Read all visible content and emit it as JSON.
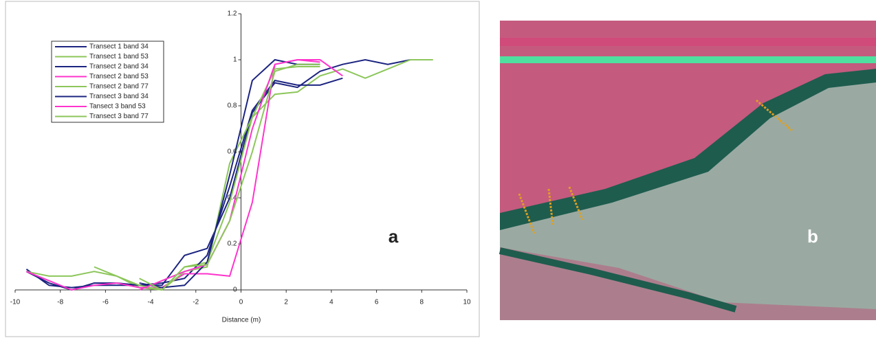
{
  "chart_data": {
    "type": "line",
    "x_label": "Distance (m)",
    "annotation": "a",
    "image_label": "b",
    "x": [
      -9.5,
      -8.5,
      -7.5,
      -6.5,
      -5.5,
      -4.5,
      -3.5,
      -2.5,
      -1.5,
      -0.5,
      0.5,
      1.5,
      2.5,
      3.5,
      4.5,
      5.5,
      6.5,
      7.5,
      8.5
    ],
    "series": [
      {
        "name": "Transect 1 band 34",
        "color": "#1c2480",
        "values": [
          0.09,
          0.02,
          0.01,
          0.02,
          0.02,
          0.02,
          0.02,
          0.15,
          0.18,
          0.4,
          0.77,
          0.9,
          0.88,
          0.95,
          0.98,
          1.0,
          0.98,
          1.0,
          null
        ]
      },
      {
        "name": "Transect 1 band 53",
        "color": "#8cc65a",
        "values": [
          0.08,
          0.06,
          0.06,
          0.08,
          0.06,
          0.01,
          0.0,
          0.1,
          0.12,
          0.38,
          0.75,
          0.85,
          0.86,
          0.93,
          0.96,
          0.92,
          0.96,
          1.0,
          1.0
        ]
      },
      {
        "name": "Transect 2 band 34",
        "color": "#1c2480",
        "values": [
          0.08,
          0.03,
          0.0,
          0.03,
          0.03,
          0.02,
          0.03,
          0.05,
          0.15,
          0.45,
          0.78,
          0.91,
          0.89,
          0.89,
          0.92,
          null,
          null,
          null,
          null
        ]
      },
      {
        "name": "Transect 2 band 53",
        "color": "#ff33cc",
        "values": [
          0.08,
          0.04,
          0.0,
          0.02,
          0.03,
          0.01,
          0.01,
          0.07,
          0.07,
          0.06,
          0.38,
          0.98,
          1.0,
          1.0,
          0.93,
          null,
          null,
          null,
          null
        ]
      },
      {
        "name": "Transect 2 band 77",
        "color": "#8cc65a",
        "values": [
          null,
          null,
          null,
          0.1,
          0.06,
          0.02,
          0.0,
          0.08,
          0.1,
          0.55,
          0.75,
          0.96,
          0.97,
          0.97,
          null,
          null,
          null,
          null,
          null
        ]
      },
      {
        "name": "Transect 3 band 34",
        "color": "#1c2480",
        "values": [
          null,
          null,
          null,
          null,
          null,
          0.03,
          0.01,
          0.02,
          0.12,
          0.5,
          0.91,
          1.0,
          0.98,
          0.98,
          null,
          null,
          null,
          null,
          null
        ]
      },
      {
        "name": "Tansect 3 band 53",
        "color": "#ff33cc",
        "values": [
          null,
          null,
          null,
          null,
          null,
          0.0,
          0.04,
          0.08,
          0.11,
          0.3,
          0.7,
          0.98,
          1.0,
          0.99,
          null,
          null,
          null,
          null,
          null
        ]
      },
      {
        "name": "Transect 3 band 77",
        "color": "#8cc65a",
        "values": [
          null,
          null,
          null,
          null,
          null,
          0.05,
          0.0,
          0.1,
          0.11,
          0.3,
          0.6,
          0.95,
          0.98,
          0.98,
          null,
          null,
          null,
          null,
          null
        ]
      }
    ],
    "xlim": [
      -10,
      10
    ],
    "xticks": [
      -10,
      -8,
      -6,
      -4,
      -2,
      0,
      2,
      4,
      6,
      8,
      10
    ],
    "ylim": [
      0,
      1.2
    ],
    "yticks": [
      0,
      0.2,
      0.4,
      0.6,
      0.8,
      1,
      1.2
    ]
  }
}
